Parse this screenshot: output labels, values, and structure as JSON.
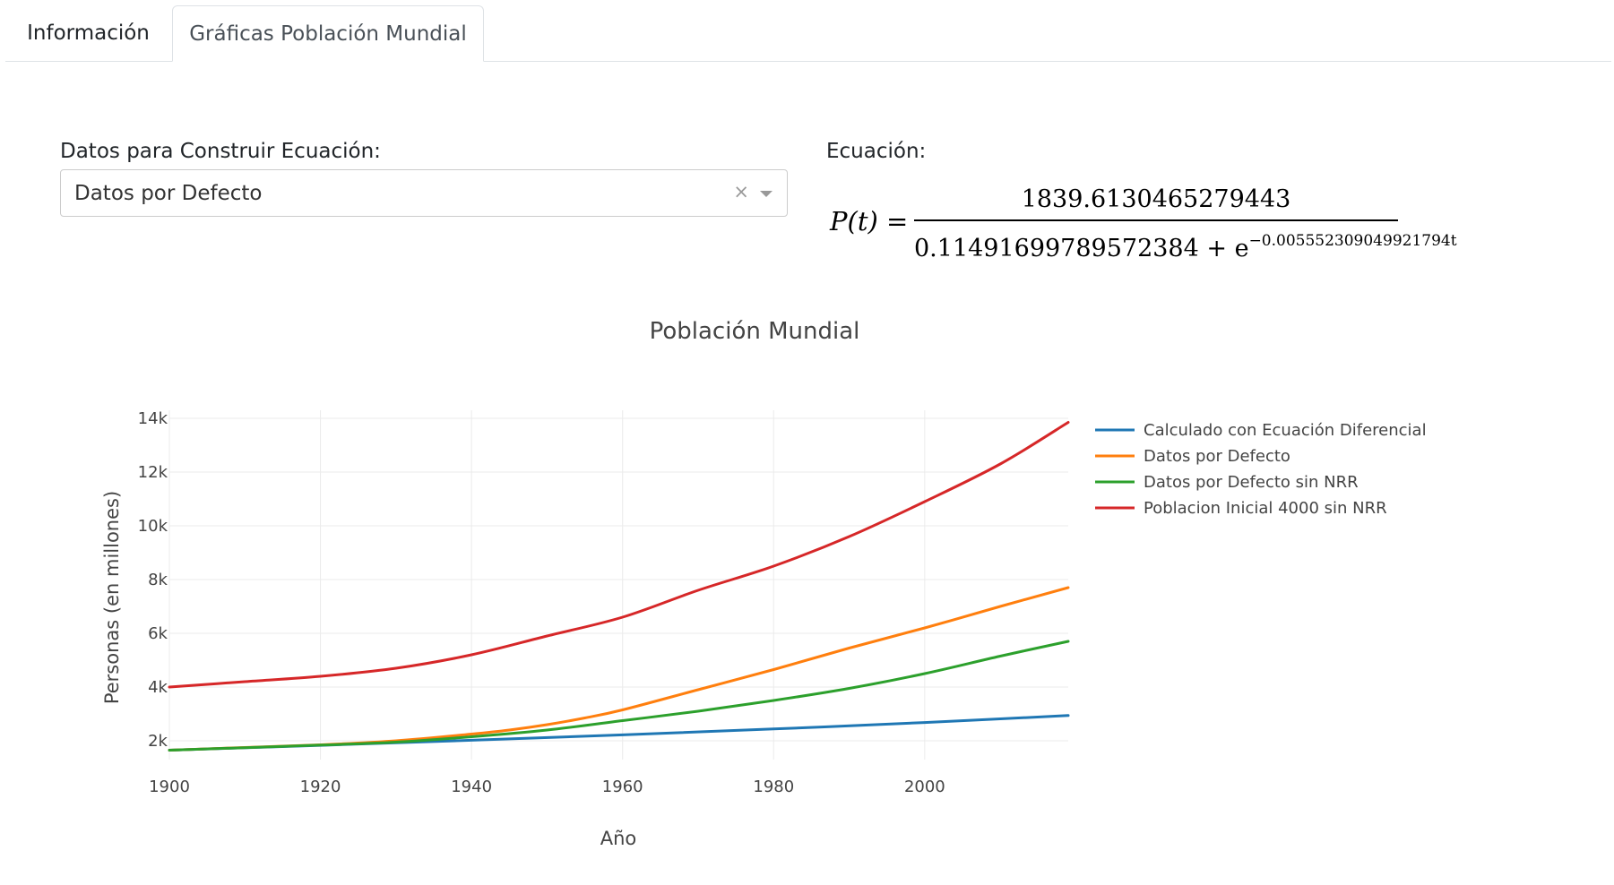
{
  "tabs": [
    {
      "label": "Información",
      "active": false
    },
    {
      "label": "Gráficas Población Mundial",
      "active": true
    }
  ],
  "form": {
    "datos_label": "Datos para Construir Ecuación:",
    "datos_value": "Datos por Defecto",
    "clear_glyph": "×",
    "ecuacion_label": "Ecuación:"
  },
  "equation": {
    "lhs": "P(t) =",
    "numerator": "1839.6130465279443",
    "denominator_base": "0.11491699789572384 + e",
    "denominator_exponent": "−0.005552309049921794t"
  },
  "chart_data": {
    "type": "line",
    "title": "Población Mundial",
    "xlabel": "Año",
    "ylabel": "Personas (en millones)",
    "xlim": [
      1900,
      2019
    ],
    "ylim": [
      1300,
      14300
    ],
    "x_ticks": [
      1900,
      1920,
      1940,
      1960,
      1980,
      2000
    ],
    "y_ticks": [
      {
        "value": 2000,
        "label": "2k"
      },
      {
        "value": 4000,
        "label": "4k"
      },
      {
        "value": 6000,
        "label": "6k"
      },
      {
        "value": 8000,
        "label": "8k"
      },
      {
        "value": 10000,
        "label": "10k"
      },
      {
        "value": 12000,
        "label": "12k"
      },
      {
        "value": 14000,
        "label": "14k"
      }
    ],
    "grid": true,
    "legend_position": "right",
    "series": [
      {
        "name": "Calculado con Ecuación Diferencial",
        "color": "#1f77b4",
        "x": [
          1900,
          1920,
          1940,
          1960,
          1980,
          2000,
          2019
        ],
        "y": [
          1650,
          1830,
          2020,
          2220,
          2440,
          2680,
          2940
        ]
      },
      {
        "name": "Datos por Defecto",
        "color": "#ff7f0e",
        "x": [
          1900,
          1910,
          1920,
          1930,
          1940,
          1945,
          1950,
          1955,
          1960,
          1970,
          1980,
          1990,
          2000,
          2010,
          2019
        ],
        "y": [
          1650,
          1750,
          1850,
          2000,
          2250,
          2400,
          2600,
          2850,
          3150,
          3900,
          4650,
          5450,
          6200,
          7000,
          7700
        ]
      },
      {
        "name": "Datos por Defecto sin NRR",
        "color": "#2ca02c",
        "x": [
          1900,
          1920,
          1930,
          1940,
          1950,
          1960,
          1970,
          1980,
          1990,
          2000,
          2010,
          2019
        ],
        "y": [
          1650,
          1840,
          1950,
          2150,
          2400,
          2750,
          3100,
          3500,
          3950,
          4500,
          5150,
          5700
        ]
      },
      {
        "name": "Poblacion Inicial 4000 sin NRR",
        "color": "#d62728",
        "x": [
          1900,
          1910,
          1920,
          1930,
          1940,
          1950,
          1960,
          1970,
          1980,
          1990,
          2000,
          2010,
          2019
        ],
        "y": [
          4000,
          4200,
          4400,
          4700,
          5200,
          5900,
          6600,
          7600,
          8500,
          9600,
          10900,
          12300,
          13850
        ]
      }
    ]
  }
}
